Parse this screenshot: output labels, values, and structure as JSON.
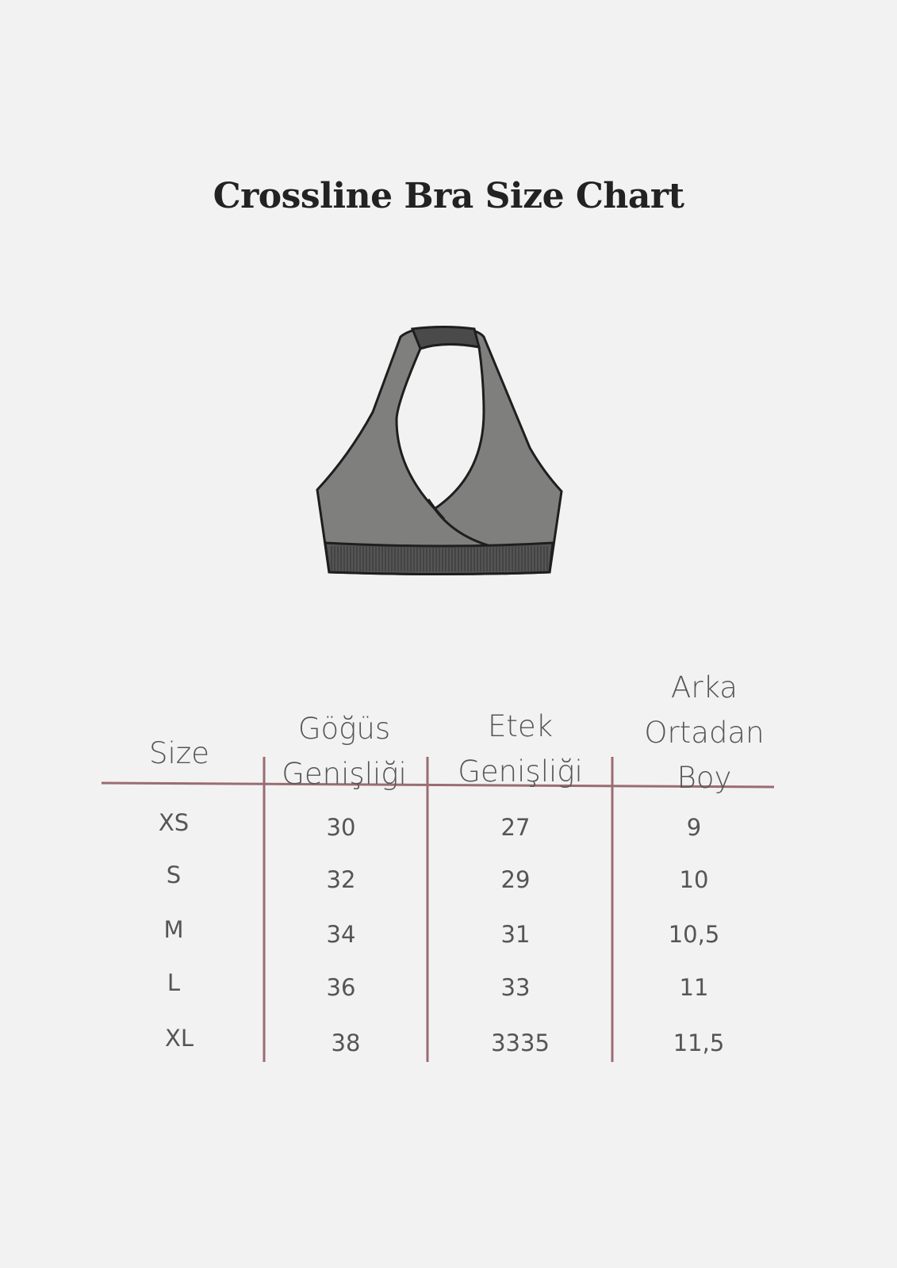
{
  "title": "Crossline Bra Size Chart",
  "colors": {
    "background": "#f2f2f2",
    "rule": "#9a6c72",
    "garment": "#7f807e",
    "band": "#4a4a4a"
  },
  "table": {
    "headers": [
      "Size",
      "Göğüs\nGenişliği",
      "Etek\nGenişliği",
      "Arka\nOrtadan\nBoy"
    ],
    "header_lines": [
      [
        "Size"
      ],
      [
        "Göğüs",
        "Genişliği"
      ],
      [
        "Etek",
        "Genişliği"
      ],
      [
        "Arka",
        "Ortadan",
        "Boy"
      ]
    ],
    "rows": [
      [
        "XS",
        "30",
        "27",
        "9"
      ],
      [
        "S",
        "32",
        "29",
        "10"
      ],
      [
        "M",
        "34",
        "31",
        "10,5"
      ],
      [
        "L",
        "36",
        "33",
        "11"
      ],
      [
        "XL",
        "38",
        "3335",
        "11,5"
      ]
    ]
  }
}
